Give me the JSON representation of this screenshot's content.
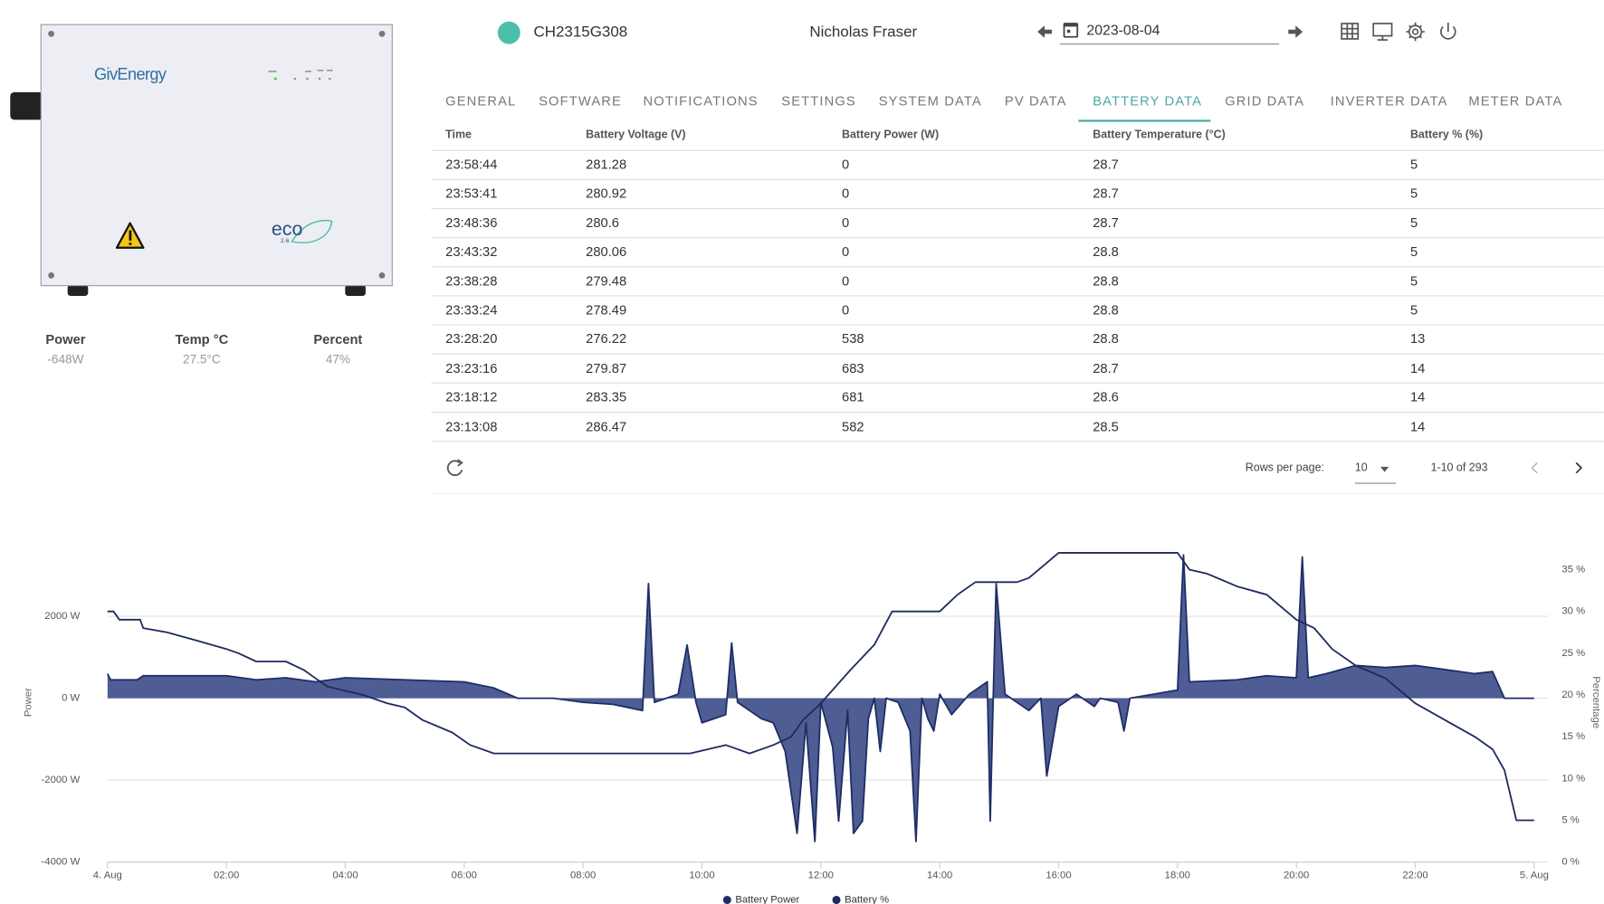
{
  "header": {
    "serial": "CH2315G308",
    "user": "Nicholas Fraser",
    "date": "2023-08-04"
  },
  "device": {
    "brand": "GivEnergy",
    "model": "eco",
    "version": "2.6"
  },
  "stats": [
    {
      "label": "Power",
      "value": "-648W"
    },
    {
      "label": "Temp °C",
      "value": "27.5°C"
    },
    {
      "label": "Percent",
      "value": "47%"
    }
  ],
  "tabs": [
    "GENERAL",
    "SOFTWARE",
    "NOTIFICATIONS",
    "SETTINGS",
    "SYSTEM DATA",
    "PV DATA",
    "BATTERY DATA",
    "GRID DATA",
    "INVERTER DATA",
    "METER DATA"
  ],
  "active_tab": 6,
  "table": {
    "columns": [
      "Time",
      "Battery Voltage (V)",
      "Battery Power (W)",
      "Battery Temperature (°C)",
      "Battery % (%)"
    ],
    "rows": [
      [
        "23:58:44",
        281.28,
        0,
        28.7,
        5
      ],
      [
        "23:53:41",
        280.92,
        0,
        28.7,
        5
      ],
      [
        "23:48:36",
        280.6,
        0,
        28.7,
        5
      ],
      [
        "23:43:32",
        280.06,
        0,
        28.8,
        5
      ],
      [
        "23:38:28",
        279.48,
        0,
        28.8,
        5
      ],
      [
        "23:33:24",
        278.49,
        0,
        28.8,
        5
      ],
      [
        "23:28:20",
        276.22,
        538,
        28.8,
        13
      ],
      [
        "23:23:16",
        279.87,
        683,
        28.7,
        14
      ],
      [
        "23:18:12",
        283.35,
        681,
        28.6,
        14
      ],
      [
        "23:13:08",
        286.47,
        582,
        28.5,
        14
      ]
    ]
  },
  "pagination": {
    "rows_label": "Rows per page:",
    "rows_value": 10,
    "range": "1-10 of 293"
  },
  "chart_data": {
    "type": "line",
    "y_label": "Power",
    "y2_label": "Percentage",
    "xlim": [
      0,
      24
    ],
    "xticks": [
      {
        "value": 0,
        "label": "4. Aug"
      },
      {
        "value": 2,
        "label": "02:00"
      },
      {
        "value": 4,
        "label": "04:00"
      },
      {
        "value": 6,
        "label": "06:00"
      },
      {
        "value": 8,
        "label": "08:00"
      },
      {
        "value": 10,
        "label": "10:00"
      },
      {
        "value": 12,
        "label": "12:00"
      },
      {
        "value": 14,
        "label": "14:00"
      },
      {
        "value": 16,
        "label": "16:00"
      },
      {
        "value": 18,
        "label": "18:00"
      },
      {
        "value": 20,
        "label": "20:00"
      },
      {
        "value": 22,
        "label": "22:00"
      },
      {
        "value": 24,
        "label": "5. Aug"
      }
    ],
    "ylim": [
      -4000,
      3600
    ],
    "yticks": [
      {
        "value": 2000,
        "label": "2000 W"
      },
      {
        "value": 0,
        "label": "0 W"
      },
      {
        "value": -2000,
        "label": "-2000 W"
      },
      {
        "value": -4000,
        "label": "-4000 W"
      }
    ],
    "y2lim": [
      0,
      37.25
    ],
    "y2ticks": [
      {
        "value": 0,
        "label": "0 %"
      },
      {
        "value": 5,
        "label": "5 %"
      },
      {
        "value": 10,
        "label": "10 %"
      },
      {
        "value": 15,
        "label": "15 %"
      },
      {
        "value": 20,
        "label": "20 %"
      },
      {
        "value": 25,
        "label": "25 %"
      },
      {
        "value": 30,
        "label": "30 %"
      },
      {
        "value": 35,
        "label": "35 %"
      }
    ],
    "grid": true,
    "legend": "bottom",
    "series": [
      {
        "name": "Battery Power",
        "type": "area",
        "color": "#1f2d66",
        "fill": "#4e5d94",
        "x": [
          0,
          0.05,
          0.5,
          0.6,
          1.5,
          2,
          2.5,
          3,
          3.5,
          4,
          5,
          6,
          6.5,
          6.9,
          7.5,
          8,
          8.5,
          9,
          9.1,
          9.2,
          9.6,
          9.75,
          9.9,
          10,
          10.4,
          10.5,
          10.6,
          11,
          11.2,
          11.4,
          11.6,
          11.75,
          11.9,
          12,
          12.2,
          12.3,
          12.45,
          12.55,
          12.7,
          12.8,
          12.9,
          13,
          13.1,
          13.3,
          13.5,
          13.6,
          13.7,
          13.8,
          13.9,
          14,
          14.2,
          14.5,
          14.8,
          14.85,
          14.9,
          14.95,
          15.1,
          15.5,
          15.7,
          15.8,
          16,
          16.3,
          16.5,
          16.6,
          16.7,
          17,
          17.1,
          17.2,
          18,
          18.1,
          18.2,
          19,
          19.5,
          20,
          20.1,
          20.2,
          20.5,
          21,
          21.5,
          22,
          22.5,
          23,
          23.3,
          23.5,
          24
        ],
        "values": [
          600,
          450,
          450,
          550,
          550,
          550,
          450,
          500,
          400,
          500,
          450,
          400,
          250,
          0,
          0,
          -100,
          -150,
          -300,
          2800,
          -100,
          100,
          1300,
          -100,
          -600,
          -400,
          1350,
          -100,
          -500,
          -600,
          -1300,
          -3300,
          -600,
          -3500,
          -100,
          -1200,
          -3000,
          -300,
          -3300,
          -3000,
          -500,
          0,
          -1300,
          0,
          -100,
          -800,
          -3500,
          0,
          -500,
          -800,
          100,
          -400,
          100,
          400,
          -3000,
          0,
          2800,
          100,
          -300,
          0,
          -1900,
          -200,
          100,
          -100,
          -200,
          0,
          -100,
          -800,
          0,
          200,
          3500,
          400,
          450,
          550,
          500,
          3450,
          500,
          600,
          800,
          750,
          800,
          700,
          600,
          650,
          0,
          0
        ]
      },
      {
        "name": "Battery %",
        "type": "line",
        "color": "#1e2a5e",
        "axis": "y2",
        "x": [
          0,
          0.1,
          0.2,
          0.55,
          0.6,
          1,
          1.5,
          2,
          2.2,
          2.5,
          3,
          3.3,
          3.5,
          3.7,
          4,
          4.3,
          4.7,
          5,
          5.3,
          5.8,
          6.1,
          6.5,
          9.8,
          10.4,
          10.8,
          11.2,
          11.5,
          11.7,
          12,
          12.5,
          12.9,
          13.2,
          14,
          14.3,
          14.6,
          15.3,
          15.5,
          16,
          18,
          18.2,
          18.5,
          19,
          19.5,
          20,
          20.3,
          20.6,
          21,
          21.5,
          22,
          22.5,
          23,
          23.3,
          23.5,
          23.7,
          24
        ],
        "values": [
          30,
          30,
          29,
          29,
          28,
          27.5,
          26.5,
          25.5,
          25,
          24,
          24,
          23,
          22,
          21,
          20.5,
          20,
          19,
          18.5,
          17,
          15.5,
          14,
          13,
          13,
          14,
          13,
          14,
          15,
          17,
          19,
          23,
          26,
          30,
          30,
          32,
          33.5,
          33.5,
          34,
          37,
          37,
          35,
          34.5,
          33,
          32,
          29,
          28,
          25.5,
          23.5,
          22,
          19,
          17,
          15,
          13.5,
          11,
          5,
          5
        ]
      }
    ]
  }
}
